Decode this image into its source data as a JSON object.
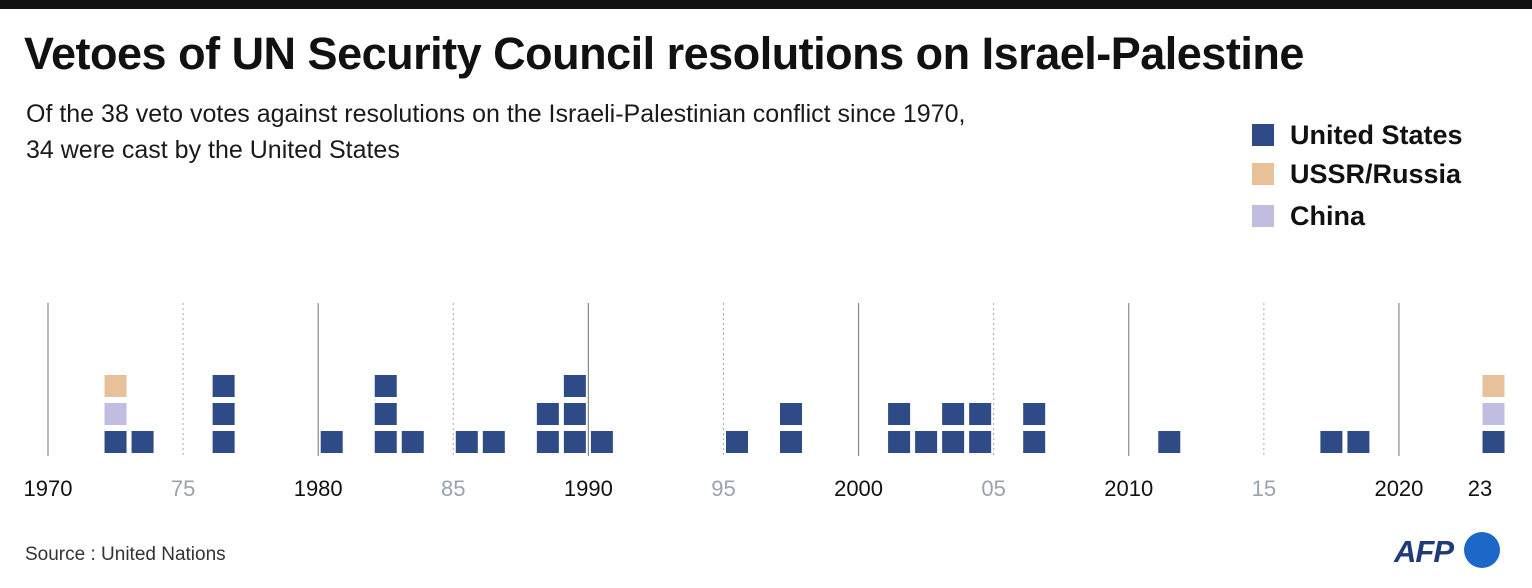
{
  "header": {
    "title": "Vetoes of UN Security Council resolutions on Israel-Palestine",
    "subtitle_line1": "Of the 38 veto votes against resolutions on the Israeli-Palestinian conflict since 1970,",
    "subtitle_line2": "34 were cast by the United States"
  },
  "legend": [
    {
      "label": "United States",
      "color": "#2e4a87"
    },
    {
      "label": "USSR/Russia",
      "color": "#e8c19b"
    },
    {
      "label": "China",
      "color": "#c1bde0"
    }
  ],
  "chart_data": {
    "type": "waffle-timeline",
    "x_range": [
      1970,
      2023
    ],
    "ticks": [
      {
        "year": 1970,
        "label": "1970",
        "major": true
      },
      {
        "year": 1975,
        "label": "75",
        "major": false
      },
      {
        "year": 1980,
        "label": "1980",
        "major": true
      },
      {
        "year": 1985,
        "label": "85",
        "major": false
      },
      {
        "year": 1990,
        "label": "1990",
        "major": true
      },
      {
        "year": 1995,
        "label": "95",
        "major": false
      },
      {
        "year": 2000,
        "label": "2000",
        "major": true
      },
      {
        "year": 2005,
        "label": "05",
        "major": false
      },
      {
        "year": 2010,
        "label": "2010",
        "major": true
      },
      {
        "year": 2015,
        "label": "15",
        "major": false
      },
      {
        "year": 2020,
        "label": "2020",
        "major": true
      },
      {
        "year": 2023,
        "label": "23",
        "major": true
      }
    ],
    "series": [
      {
        "name": "United States",
        "color": "#2e4a87"
      },
      {
        "name": "USSR/Russia",
        "color": "#e8c19b"
      },
      {
        "name": "China",
        "color": "#c1bde0"
      }
    ],
    "vetoes": [
      {
        "year": 1972,
        "stack": [
          "United States",
          "China",
          "USSR/Russia"
        ]
      },
      {
        "year": 1973,
        "stack": [
          "United States"
        ]
      },
      {
        "year": 1976,
        "stack": [
          "United States",
          "United States",
          "United States"
        ]
      },
      {
        "year": 1980,
        "stack": [
          "United States"
        ]
      },
      {
        "year": 1982,
        "stack": [
          "United States",
          "United States",
          "United States"
        ]
      },
      {
        "year": 1983,
        "stack": [
          "United States"
        ]
      },
      {
        "year": 1985,
        "stack": [
          "United States"
        ]
      },
      {
        "year": 1986,
        "stack": [
          "United States"
        ]
      },
      {
        "year": 1988,
        "stack": [
          "United States",
          "United States"
        ]
      },
      {
        "year": 1989,
        "stack": [
          "United States",
          "United States",
          "United States"
        ]
      },
      {
        "year": 1990,
        "stack": [
          "United States"
        ]
      },
      {
        "year": 1995,
        "stack": [
          "United States"
        ]
      },
      {
        "year": 1997,
        "stack": [
          "United States",
          "United States"
        ]
      },
      {
        "year": 2001,
        "stack": [
          "United States",
          "United States"
        ]
      },
      {
        "year": 2002,
        "stack": [
          "United States"
        ]
      },
      {
        "year": 2003,
        "stack": [
          "United States",
          "United States"
        ]
      },
      {
        "year": 2004,
        "stack": [
          "United States",
          "United States"
        ]
      },
      {
        "year": 2006,
        "stack": [
          "United States",
          "United States"
        ]
      },
      {
        "year": 2011,
        "stack": [
          "United States"
        ]
      },
      {
        "year": 2017,
        "stack": [
          "United States"
        ]
      },
      {
        "year": 2018,
        "stack": [
          "United States"
        ]
      },
      {
        "year": 2023,
        "stack": [
          "United States",
          "China",
          "USSR/Russia"
        ]
      }
    ]
  },
  "footer": {
    "source": "Source : United Nations",
    "logo_text": "AFP"
  }
}
